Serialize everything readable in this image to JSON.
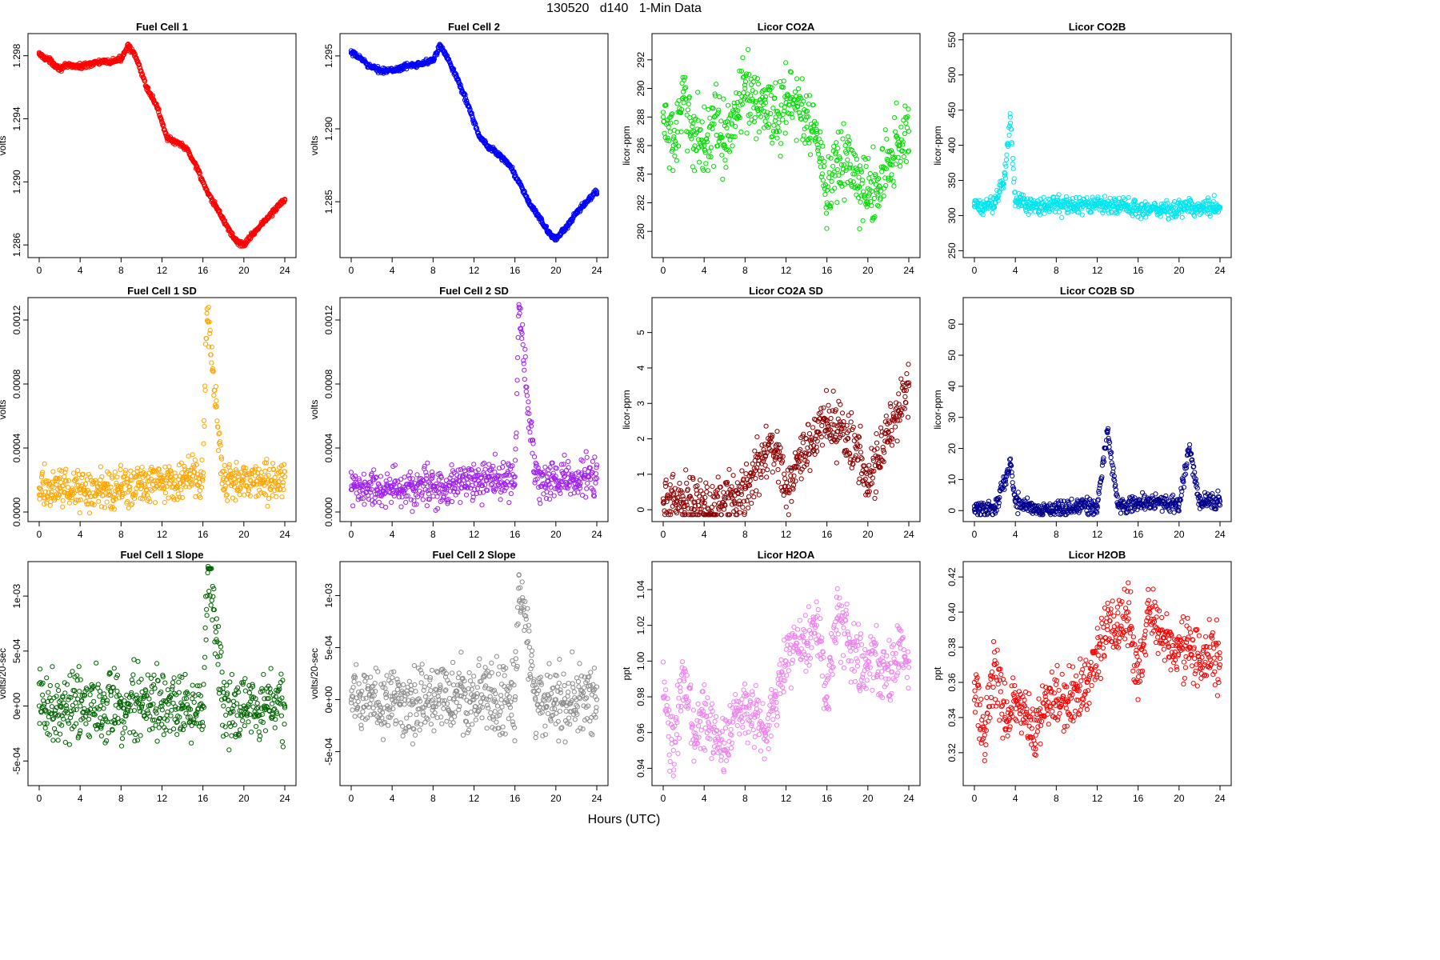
{
  "figure": {
    "title": "130520   d140   1-Min Data",
    "xlabel": "Hours (UTC)"
  },
  "chart_data": [
    {
      "type": "scatter",
      "title": "Fuel Cell 1",
      "ylabel": "volts",
      "color": "#ff0000",
      "xlim": [
        0,
        24
      ],
      "ylim": [
        1.2855,
        1.2991
      ],
      "xticks": [
        0,
        4,
        8,
        12,
        16,
        20,
        24
      ],
      "xtick_labels": [
        "0",
        "4",
        "8",
        "12",
        "16",
        "20",
        "24"
      ],
      "yticks": [
        1.286,
        1.29,
        1.294,
        1.298
      ],
      "ytick_labels": [
        "1.286",
        "1.290",
        "1.294",
        "1.298"
      ],
      "series": [
        {
          "name": "Fuel Cell 1",
          "x": [
            0,
            1,
            2,
            3,
            4,
            5,
            6,
            7,
            8,
            8.7,
            9.5,
            10.5,
            11.5,
            12.5,
            13.3,
            14,
            14.5,
            15.5,
            16.5,
            17.5,
            18.5,
            19.3,
            20,
            21,
            22,
            23,
            24
          ],
          "y": [
            1.2981,
            1.2977,
            1.2972,
            1.2974,
            1.2973,
            1.2975,
            1.2976,
            1.2976,
            1.2978,
            1.2987,
            1.2978,
            1.296,
            1.2948,
            1.2928,
            1.2925,
            1.2923,
            1.292,
            1.2908,
            1.2892,
            1.2882,
            1.287,
            1.2862,
            1.286,
            1.2868,
            1.2875,
            1.2882,
            1.2889
          ]
        }
      ]
    },
    {
      "type": "scatter",
      "title": "Fuel Cell 2",
      "ylabel": "volts",
      "color": "#0000ff",
      "xlim": [
        0,
        24
      ],
      "ylim": [
        1.2815,
        1.2962
      ],
      "xticks": [
        0,
        4,
        8,
        12,
        16,
        20,
        24
      ],
      "xtick_labels": [
        "0",
        "4",
        "8",
        "12",
        "16",
        "20",
        "24"
      ],
      "yticks": [
        1.285,
        1.29,
        1.295
      ],
      "ytick_labels": [
        "1.285",
        "1.290",
        "1.295"
      ],
      "series": [
        {
          "name": "Fuel Cell 2",
          "x": [
            0,
            1,
            2,
            3,
            4,
            5,
            6,
            7,
            8,
            8.7,
            9.5,
            10.5,
            11.5,
            12.5,
            13.3,
            14,
            14.5,
            15.5,
            16.5,
            17.5,
            18.5,
            19.3,
            20,
            21,
            22,
            23,
            24
          ],
          "y": [
            1.2952,
            1.2948,
            1.2942,
            1.294,
            1.294,
            1.2942,
            1.2944,
            1.2945,
            1.2947,
            1.2957,
            1.2948,
            1.2932,
            1.2915,
            1.2895,
            1.2888,
            1.2885,
            1.2882,
            1.2875,
            1.2862,
            1.2848,
            1.2838,
            1.2828,
            1.2825,
            1.2832,
            1.2842,
            1.285,
            1.2857
          ]
        }
      ]
    },
    {
      "type": "scatter",
      "title": "Licor CO2A",
      "ylabel": "licor-ppm",
      "color": "#00dd00",
      "xlim": [
        0,
        24
      ],
      "ylim": [
        278.5,
        293.5
      ],
      "xticks": [
        0,
        4,
        8,
        12,
        16,
        20,
        24
      ],
      "xtick_labels": [
        "0",
        "4",
        "8",
        "12",
        "16",
        "20",
        "24"
      ],
      "yticks": [
        280,
        282,
        284,
        286,
        288,
        290,
        292
      ],
      "ytick_labels": [
        "280",
        "282",
        "284",
        "286",
        "288",
        "290",
        "292"
      ],
      "series": [
        {
          "name": "CO2A",
          "x": [
            0,
            1,
            2,
            3,
            4,
            5,
            6,
            7,
            8,
            9,
            10,
            11,
            12,
            13,
            14,
            15,
            16,
            17,
            18,
            19,
            20,
            21,
            22,
            23,
            24
          ],
          "y": [
            288,
            286,
            289,
            287,
            286,
            288,
            286,
            288,
            290,
            289,
            289,
            288,
            289,
            289,
            288,
            287,
            282,
            285,
            285,
            283,
            283,
            283,
            285,
            286,
            287
          ]
        }
      ]
    },
    {
      "type": "scatter",
      "title": "Licor CO2B",
      "ylabel": "licor-ppm",
      "color": "#00e5ee",
      "xlim": [
        0,
        24
      ],
      "ylim": [
        247,
        552
      ],
      "xticks": [
        0,
        4,
        8,
        12,
        16,
        20,
        24
      ],
      "xtick_labels": [
        "0",
        "4",
        "8",
        "12",
        "16",
        "20",
        "24"
      ],
      "yticks": [
        250,
        300,
        350,
        400,
        450,
        500,
        550
      ],
      "ytick_labels": [
        "250",
        "300",
        "350",
        "400",
        "450",
        "500",
        "550"
      ],
      "series": [
        {
          "name": "CO2B",
          "x": [
            0,
            1,
            2,
            3,
            3.5,
            4,
            6,
            8,
            10,
            12,
            13,
            14,
            16,
            18,
            20,
            21,
            22,
            24
          ],
          "y": [
            313,
            312,
            318,
            360,
            440,
            320,
            313,
            315,
            314,
            315,
            316,
            312,
            310,
            309,
            308,
            315,
            312,
            312
          ]
        }
      ]
    },
    {
      "type": "scatter",
      "title": "Fuel Cell 1 SD",
      "ylabel": "volts",
      "color": "#ffa500",
      "xlim": [
        0,
        24
      ],
      "ylim": [
        -3e-05,
        0.00131
      ],
      "xticks": [
        0,
        4,
        8,
        12,
        16,
        20,
        24
      ],
      "xtick_labels": [
        "0",
        "4",
        "8",
        "12",
        "16",
        "20",
        "24"
      ],
      "yticks": [
        0,
        0.0004,
        0.0008,
        0.0012
      ],
      "ytick_labels": [
        "0.0000",
        "0.0004",
        "0.0008",
        "0.0012"
      ],
      "series": [
        {
          "name": "FC1 SD",
          "x": [
            0,
            2,
            4,
            6,
            8,
            10,
            12,
            14,
            16,
            16.4,
            18,
            20,
            22,
            24
          ],
          "y": [
            0.00015,
            0.00015,
            0.00014,
            0.00014,
            0.00016,
            0.00017,
            0.0002,
            0.0002,
            0.00022,
            0.00127,
            0.00021,
            0.0002,
            0.0002,
            0.00022
          ]
        }
      ]
    },
    {
      "type": "scatter",
      "title": "Fuel Cell 2 SD",
      "ylabel": "volts",
      "color": "#a020f0",
      "xlim": [
        0,
        24
      ],
      "ylim": [
        -3e-05,
        0.00131
      ],
      "xticks": [
        0,
        4,
        8,
        12,
        16,
        20,
        24
      ],
      "xtick_labels": [
        "0",
        "4",
        "8",
        "12",
        "16",
        "20",
        "24"
      ],
      "yticks": [
        0,
        0.0004,
        0.0008,
        0.0012
      ],
      "ytick_labels": [
        "0.0000",
        "0.0004",
        "0.0008",
        "0.0012"
      ],
      "series": [
        {
          "name": "FC2 SD",
          "x": [
            0,
            2,
            4,
            6,
            8,
            10,
            12,
            14,
            16,
            16.4,
            18,
            20,
            22,
            24
          ],
          "y": [
            0.00014,
            0.00014,
            0.00014,
            0.00015,
            0.00016,
            0.00018,
            0.0002,
            0.00021,
            0.00022,
            0.00128,
            0.0002,
            0.0002,
            0.0002,
            0.00021
          ]
        }
      ]
    },
    {
      "type": "scatter",
      "title": "Licor CO2A SD",
      "ylabel": "licor-ppm",
      "color": "#8b0000",
      "xlim": [
        0,
        24
      ],
      "ylim": [
        -0.2,
        5.85
      ],
      "xticks": [
        0,
        4,
        8,
        12,
        16,
        20,
        24
      ],
      "xtick_labels": [
        "0",
        "4",
        "8",
        "12",
        "16",
        "20",
        "24"
      ],
      "yticks": [
        0,
        1,
        2,
        3,
        4,
        5
      ],
      "ytick_labels": [
        "0",
        "1",
        "2",
        "3",
        "4",
        "5"
      ],
      "series": [
        {
          "name": "CO2A SD",
          "x": [
            0,
            1,
            2,
            3,
            4,
            5,
            6,
            7,
            8,
            9,
            10,
            11,
            12,
            13,
            14,
            15,
            16,
            17,
            18,
            19,
            20,
            21,
            22,
            23,
            24
          ],
          "y": [
            0.2,
            0.3,
            0.3,
            0.2,
            0.1,
            0.15,
            0.3,
            0.4,
            0.6,
            1.1,
            1.5,
            1.8,
            0.5,
            1.2,
            1.6,
            2.2,
            2.5,
            2.2,
            2.0,
            1.8,
            0.7,
            1.5,
            2.2,
            2.8,
            3.5
          ]
        }
      ]
    },
    {
      "type": "scatter",
      "title": "Licor CO2B SD",
      "ylabel": "licor-ppm",
      "color": "#00008b",
      "xlim": [
        0,
        24
      ],
      "ylim": [
        -2,
        67
      ],
      "xticks": [
        0,
        4,
        8,
        12,
        16,
        20,
        24
      ],
      "xtick_labels": [
        "0",
        "4",
        "8",
        "12",
        "16",
        "20",
        "24"
      ],
      "yticks": [
        0,
        10,
        20,
        30,
        40,
        50,
        60
      ],
      "ytick_labels": [
        "0",
        "10",
        "20",
        "30",
        "40",
        "50",
        "60"
      ],
      "series": [
        {
          "name": "CO2B SD",
          "x": [
            0,
            2,
            3,
            3.5,
            4,
            6,
            8,
            10,
            12,
            13,
            14,
            16,
            18,
            20,
            21,
            22,
            24
          ],
          "y": [
            0.3,
            0.8,
            10,
            15,
            3,
            0.4,
            0.8,
            1.2,
            1.5,
            25,
            2,
            2.5,
            2.5,
            2,
            20,
            3,
            3
          ]
        }
      ]
    },
    {
      "type": "scatter",
      "title": "Fuel Cell 1 Slope",
      "ylabel": "volts/20-sec",
      "color": "#006400",
      "xlim": [
        0,
        24
      ],
      "ylim": [
        -0.00068,
        0.00127
      ],
      "xticks": [
        0,
        4,
        8,
        12,
        16,
        20,
        24
      ],
      "xtick_labels": [
        "0",
        "4",
        "8",
        "12",
        "16",
        "20",
        "24"
      ],
      "yticks": [
        -0.0005,
        0,
        0.0005,
        0.001
      ],
      "ytick_labels": [
        "-5e-04",
        "0e+00",
        "5e-04",
        "1e-03"
      ],
      "series": [
        {
          "name": "FC1 Slope",
          "x": [
            0,
            2,
            4,
            6,
            8,
            10,
            12,
            14,
            16,
            16.5,
            18,
            20,
            22,
            24
          ],
          "y": [
            0,
            0,
            0,
            0,
            0,
            0,
            0,
            0,
            0,
            0.00127,
            0,
            0,
            0,
            0
          ]
        }
      ]
    },
    {
      "type": "scatter",
      "title": "Fuel Cell 2 Slope",
      "ylabel": "volts/20-sec",
      "color": "#8c8c8c",
      "xlim": [
        0,
        24
      ],
      "ylim": [
        -0.00078,
        0.00128
      ],
      "xticks": [
        0,
        4,
        8,
        12,
        16,
        20,
        24
      ],
      "xtick_labels": [
        "0",
        "4",
        "8",
        "12",
        "16",
        "20",
        "24"
      ],
      "yticks": [
        -0.0005,
        0,
        0.0005,
        0.001
      ],
      "ytick_labels": [
        "-5e-04",
        "0e+00",
        "5e-04",
        "1e-03"
      ],
      "series": [
        {
          "name": "FC2 Slope",
          "x": [
            0,
            2,
            4,
            6,
            8,
            10,
            12,
            14,
            16,
            16.4,
            18,
            20,
            22,
            24
          ],
          "y": [
            0,
            0,
            0,
            0,
            0,
            0,
            0,
            0,
            0,
            0.0012,
            0,
            0,
            0,
            0
          ]
        }
      ]
    },
    {
      "type": "scatter",
      "title": "Licor H2OA",
      "ylabel": "ppt",
      "color": "#ee82ee",
      "xlim": [
        0,
        24
      ],
      "ylim": [
        0.933,
        1.053
      ],
      "xticks": [
        0,
        4,
        8,
        12,
        16,
        20,
        24
      ],
      "xtick_labels": [
        "0",
        "4",
        "8",
        "12",
        "16",
        "20",
        "24"
      ],
      "yticks": [
        0.94,
        0.96,
        0.98,
        1.0,
        1.02,
        1.04
      ],
      "ytick_labels": [
        "0.94",
        "0.96",
        "0.98",
        "1.00",
        "1.02",
        "1.04"
      ],
      "series": [
        {
          "name": "H2OA",
          "x": [
            0,
            1,
            2,
            3,
            4,
            5,
            6,
            7,
            8,
            9,
            10,
            11,
            12,
            13,
            14,
            15,
            16,
            17,
            18,
            19,
            20,
            21,
            22,
            23,
            24
          ],
          "y": [
            0.98,
            0.95,
            0.99,
            0.96,
            0.97,
            0.96,
            0.95,
            0.97,
            0.97,
            0.97,
            0.96,
            0.98,
            1.0,
            1.01,
            1.01,
            1.02,
            0.98,
            1.03,
            1.01,
            1.0,
            1.0,
            1.0,
            0.99,
            1.01,
            1.0
          ]
        }
      ]
    },
    {
      "type": "scatter",
      "title": "Licor H2OB",
      "ylabel": "ppt",
      "color": "#ff0000",
      "xlim": [
        0,
        24
      ],
      "ylim": [
        0.304,
        0.426
      ],
      "xticks": [
        0,
        4,
        8,
        12,
        16,
        20,
        24
      ],
      "xtick_labels": [
        "0",
        "4",
        "8",
        "12",
        "16",
        "20",
        "24"
      ],
      "yticks": [
        0.32,
        0.34,
        0.36,
        0.38,
        0.4,
        0.42
      ],
      "ytick_labels": [
        "0.32",
        "0.34",
        "0.36",
        "0.38",
        "0.40",
        "0.42"
      ],
      "series": [
        {
          "name": "H2OB",
          "x": [
            0,
            1,
            2,
            3,
            4,
            5,
            6,
            7,
            8,
            9,
            10,
            11,
            12,
            13,
            14,
            15,
            16,
            17,
            18,
            19,
            20,
            21,
            22,
            23,
            24
          ],
          "y": [
            0.36,
            0.33,
            0.37,
            0.34,
            0.35,
            0.34,
            0.33,
            0.35,
            0.35,
            0.35,
            0.35,
            0.36,
            0.38,
            0.39,
            0.39,
            0.4,
            0.36,
            0.4,
            0.39,
            0.38,
            0.38,
            0.38,
            0.37,
            0.38,
            0.37
          ]
        }
      ]
    }
  ]
}
